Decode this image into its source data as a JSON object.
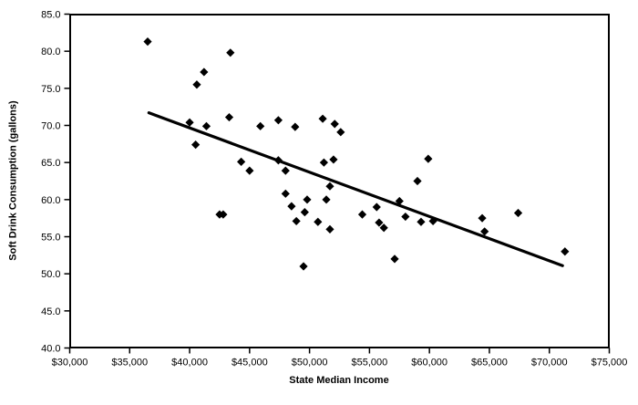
{
  "chart_data": {
    "type": "scatter",
    "title": "",
    "xlabel": "State Median Income",
    "ylabel": "Soft Drink Consumption (gallons)",
    "xlim": [
      30000,
      75000
    ],
    "ylim": [
      40,
      85
    ],
    "grid": false,
    "legend": null,
    "point_color": "#000000",
    "trend_line_color": "#000000",
    "axis_color": "#000000",
    "marker": "diamond",
    "x_tick_values": [
      30000,
      35000,
      40000,
      45000,
      50000,
      55000,
      60000,
      65000,
      70000,
      75000
    ],
    "x_tick_labels": [
      "$30,000",
      "$35,000",
      "$40,000",
      "$45,000",
      "$50,000",
      "$55,000",
      "$60,000",
      "$65,000",
      "$70,000",
      "$75,000"
    ],
    "y_tick_values": [
      40,
      45,
      50,
      55,
      60,
      65,
      70,
      75,
      80,
      85
    ],
    "y_tick_labels": [
      "40.0",
      "45.0",
      "50.0",
      "55.0",
      "60.0",
      "65.0",
      "70.0",
      "75.0",
      "80.0",
      "85.0"
    ],
    "points": [
      [
        36500,
        81.3
      ],
      [
        43400,
        79.8
      ],
      [
        41200,
        77.2
      ],
      [
        40600,
        75.5
      ],
      [
        40000,
        70.4
      ],
      [
        43300,
        71.1
      ],
      [
        41400,
        69.9
      ],
      [
        45900,
        69.9
      ],
      [
        47400,
        70.7
      ],
      [
        48800,
        69.8
      ],
      [
        51100,
        70.9
      ],
      [
        52100,
        70.2
      ],
      [
        52600,
        69.1
      ],
      [
        40500,
        67.4
      ],
      [
        44300,
        65.1
      ],
      [
        45000,
        63.9
      ],
      [
        47400,
        65.3
      ],
      [
        48000,
        63.9
      ],
      [
        51200,
        65.0
      ],
      [
        52000,
        65.4
      ],
      [
        51700,
        61.8
      ],
      [
        48000,
        60.8
      ],
      [
        48500,
        59.1
      ],
      [
        48900,
        57.1
      ],
      [
        49800,
        60.0
      ],
      [
        51400,
        60.0
      ],
      [
        49600,
        58.3
      ],
      [
        50700,
        57.0
      ],
      [
        51700,
        56.0
      ],
      [
        42500,
        58.0
      ],
      [
        42800,
        58.0
      ],
      [
        49500,
        51.0
      ],
      [
        54400,
        58.0
      ],
      [
        55600,
        59.0
      ],
      [
        55800,
        56.9
      ],
      [
        56200,
        56.2
      ],
      [
        57500,
        59.8
      ],
      [
        58000,
        57.7
      ],
      [
        59300,
        57.0
      ],
      [
        60300,
        57.1
      ],
      [
        57100,
        52.0
      ],
      [
        59000,
        62.5
      ],
      [
        59900,
        65.5
      ],
      [
        64400,
        57.5
      ],
      [
        64600,
        55.7
      ],
      [
        67400,
        58.2
      ],
      [
        71300,
        53.0
      ]
    ],
    "trend_line": {
      "x1": 36600,
      "y1": 71.7,
      "x2": 71100,
      "y2": 51.1
    }
  }
}
